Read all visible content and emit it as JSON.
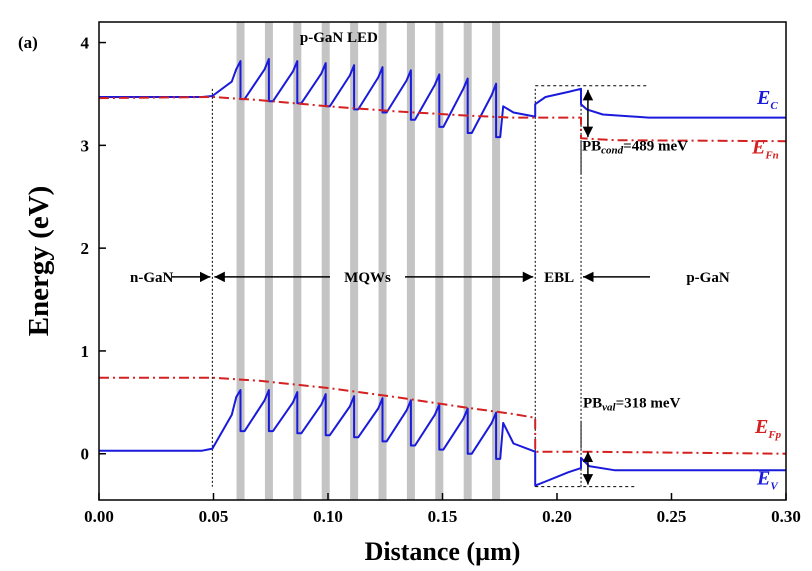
{
  "chart_data": {
    "type": "line",
    "panel_label": "(a)",
    "title": "p-GaN LED",
    "xlabel": "Distance (µm)",
    "ylabel": "Energy (eV)",
    "xlim": [
      0.0,
      0.3
    ],
    "ylim": [
      -0.45,
      4.2
    ],
    "x_ticks": [
      "0.00",
      "0.05",
      "0.10",
      "0.15",
      "0.20",
      "0.25",
      "0.30"
    ],
    "y_ticks": [
      "0",
      "1",
      "2",
      "3",
      "4"
    ],
    "colors": {
      "bands": "#1a1adc",
      "fermi": "#d42020",
      "wells": "#c4c4c4"
    },
    "quantum_wells_x": [
      0.0618,
      0.0742,
      0.0866,
      0.099,
      0.1114,
      0.1238,
      0.1362,
      0.1486,
      0.161,
      0.1734
    ],
    "quantum_well_width": 0.0035,
    "region_boundaries_x": [
      0.0495,
      0.1905,
      0.2105
    ],
    "regions": [
      {
        "label": "n-GaN",
        "from": 0.0,
        "to": 0.0495
      },
      {
        "label": "MQWs",
        "from": 0.0495,
        "to": 0.1905
      },
      {
        "label": "EBL",
        "from": 0.1905,
        "to": 0.2105
      },
      {
        "label": "p-GaN",
        "from": 0.2105,
        "to": 0.3
      }
    ],
    "series": [
      {
        "name": "E_C",
        "label_main": "E",
        "label_sub": "C",
        "style": "solid",
        "color": "#1a1adc",
        "points": [
          [
            0.0,
            3.47
          ],
          [
            0.045,
            3.47
          ],
          [
            0.0495,
            3.48
          ],
          [
            0.058,
            3.62
          ],
          [
            0.0599,
            3.74
          ],
          [
            0.0618,
            3.82
          ],
          [
            0.0618,
            3.45
          ],
          [
            0.0636,
            3.45
          ],
          [
            0.0723,
            3.74
          ],
          [
            0.0742,
            3.84
          ],
          [
            0.0742,
            3.43
          ],
          [
            0.076,
            3.43
          ],
          [
            0.0847,
            3.72
          ],
          [
            0.0866,
            3.82
          ],
          [
            0.0866,
            3.41
          ],
          [
            0.0884,
            3.41
          ],
          [
            0.0971,
            3.7
          ],
          [
            0.099,
            3.8
          ],
          [
            0.099,
            3.38
          ],
          [
            0.1008,
            3.38
          ],
          [
            0.1095,
            3.68
          ],
          [
            0.1114,
            3.78
          ],
          [
            0.1114,
            3.35
          ],
          [
            0.1132,
            3.35
          ],
          [
            0.1219,
            3.66
          ],
          [
            0.1238,
            3.76
          ],
          [
            0.1238,
            3.32
          ],
          [
            0.1256,
            3.32
          ],
          [
            0.1343,
            3.63
          ],
          [
            0.1362,
            3.73
          ],
          [
            0.1362,
            3.25
          ],
          [
            0.138,
            3.25
          ],
          [
            0.1467,
            3.59
          ],
          [
            0.1486,
            3.69
          ],
          [
            0.1486,
            3.18
          ],
          [
            0.1504,
            3.18
          ],
          [
            0.1591,
            3.55
          ],
          [
            0.161,
            3.65
          ],
          [
            0.161,
            3.12
          ],
          [
            0.1628,
            3.12
          ],
          [
            0.1715,
            3.49
          ],
          [
            0.1734,
            3.6
          ],
          [
            0.1734,
            3.08
          ],
          [
            0.1752,
            3.08
          ],
          [
            0.1765,
            3.38
          ],
          [
            0.181,
            3.32
          ],
          [
            0.1905,
            3.28
          ],
          [
            0.1905,
            3.4
          ],
          [
            0.195,
            3.47
          ],
          [
            0.205,
            3.52
          ],
          [
            0.2105,
            3.55
          ],
          [
            0.2105,
            3.4
          ],
          [
            0.213,
            3.35
          ],
          [
            0.22,
            3.3
          ],
          [
            0.24,
            3.27
          ],
          [
            0.3,
            3.27
          ]
        ]
      },
      {
        "name": "E_Fn",
        "label_main": "E",
        "label_sub": "Fn",
        "style": "dashdot",
        "color": "#d42020",
        "points": [
          [
            0.0,
            3.46
          ],
          [
            0.0495,
            3.47
          ],
          [
            0.07,
            3.44
          ],
          [
            0.1,
            3.38
          ],
          [
            0.13,
            3.33
          ],
          [
            0.16,
            3.29
          ],
          [
            0.18,
            3.27
          ],
          [
            0.1905,
            3.27
          ],
          [
            0.2105,
            3.27
          ],
          [
            0.2105,
            3.07
          ],
          [
            0.225,
            3.05
          ],
          [
            0.3,
            3.04
          ]
        ]
      },
      {
        "name": "E_V",
        "label_main": "E",
        "label_sub": "V",
        "style": "solid",
        "color": "#1a1adc",
        "points": [
          [
            0.0,
            0.03
          ],
          [
            0.045,
            0.03
          ],
          [
            0.0495,
            0.05
          ],
          [
            0.058,
            0.38
          ],
          [
            0.0599,
            0.55
          ],
          [
            0.0618,
            0.62
          ],
          [
            0.0618,
            0.22
          ],
          [
            0.0636,
            0.22
          ],
          [
            0.0723,
            0.52
          ],
          [
            0.0742,
            0.62
          ],
          [
            0.0742,
            0.22
          ],
          [
            0.076,
            0.22
          ],
          [
            0.0847,
            0.5
          ],
          [
            0.0866,
            0.6
          ],
          [
            0.0866,
            0.2
          ],
          [
            0.0884,
            0.2
          ],
          [
            0.0971,
            0.48
          ],
          [
            0.099,
            0.58
          ],
          [
            0.099,
            0.18
          ],
          [
            0.1008,
            0.18
          ],
          [
            0.1095,
            0.46
          ],
          [
            0.1114,
            0.56
          ],
          [
            0.1114,
            0.16
          ],
          [
            0.1132,
            0.16
          ],
          [
            0.1219,
            0.44
          ],
          [
            0.1238,
            0.54
          ],
          [
            0.1238,
            0.12
          ],
          [
            0.1256,
            0.12
          ],
          [
            0.1343,
            0.42
          ],
          [
            0.1362,
            0.52
          ],
          [
            0.1362,
            0.08
          ],
          [
            0.138,
            0.08
          ],
          [
            0.1467,
            0.38
          ],
          [
            0.1486,
            0.48
          ],
          [
            0.1486,
            0.04
          ],
          [
            0.1504,
            0.04
          ],
          [
            0.1591,
            0.34
          ],
          [
            0.161,
            0.44
          ],
          [
            0.161,
            0.0
          ],
          [
            0.1628,
            0.0
          ],
          [
            0.1715,
            0.3
          ],
          [
            0.1734,
            0.4
          ],
          [
            0.1734,
            -0.05
          ],
          [
            0.1752,
            -0.05
          ],
          [
            0.1765,
            0.3
          ],
          [
            0.181,
            0.1
          ],
          [
            0.1905,
            0.02
          ],
          [
            0.1905,
            -0.31
          ],
          [
            0.195,
            -0.27
          ],
          [
            0.205,
            -0.18
          ],
          [
            0.2105,
            -0.14
          ],
          [
            0.2105,
            -0.04
          ],
          [
            0.214,
            -0.12
          ],
          [
            0.225,
            -0.16
          ],
          [
            0.3,
            -0.16
          ]
        ]
      },
      {
        "name": "E_Fp",
        "label_main": "E",
        "label_sub": "Fp",
        "style": "dashdot",
        "color": "#d42020",
        "points": [
          [
            0.0,
            0.74
          ],
          [
            0.0495,
            0.74
          ],
          [
            0.07,
            0.71
          ],
          [
            0.1,
            0.64
          ],
          [
            0.13,
            0.55
          ],
          [
            0.16,
            0.45
          ],
          [
            0.18,
            0.39
          ],
          [
            0.1905,
            0.35
          ],
          [
            0.1905,
            0.02
          ],
          [
            0.2105,
            0.02
          ],
          [
            0.3,
            0.0
          ]
        ]
      }
    ],
    "annotations": {
      "pb_cond_main": "PB",
      "pb_cond_sub": "cond",
      "pb_cond_value": "=489 meV",
      "pb_val_main": "PB",
      "pb_val_sub": "val",
      "pb_val_value": "=318 meV"
    }
  }
}
